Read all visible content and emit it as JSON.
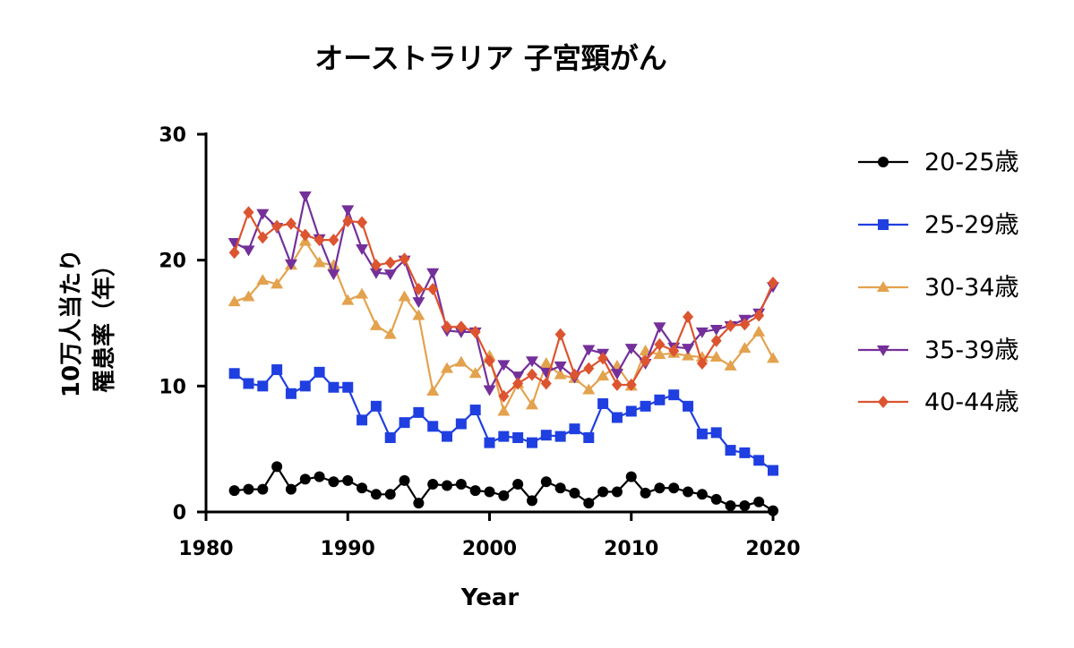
{
  "chart_data": {
    "type": "line",
    "title": "オーストラリア 子宮頸がん",
    "xlabel": "Year",
    "ylabel_lines": [
      "10万人当たり",
      "罹患率（年）"
    ],
    "xlim": [
      1980,
      2020
    ],
    "ylim": [
      0,
      30
    ],
    "xticks": [
      1980,
      1990,
      2000,
      2010,
      2020
    ],
    "yticks": [
      0,
      10,
      20,
      30
    ],
    "legend_position": "right",
    "x": [
      1982,
      1983,
      1984,
      1985,
      1986,
      1987,
      1988,
      1989,
      1990,
      1991,
      1992,
      1993,
      1994,
      1995,
      1996,
      1997,
      1998,
      1999,
      2000,
      2001,
      2002,
      2003,
      2004,
      2005,
      2006,
      2007,
      2008,
      2009,
      2010,
      2011,
      2012,
      2013,
      2014,
      2015,
      2016,
      2017,
      2018,
      2019,
      2020
    ],
    "series": [
      {
        "name": "20-25歳",
        "color": "#000000",
        "marker": "circle",
        "values": [
          1.7,
          1.8,
          1.8,
          3.6,
          1.8,
          2.6,
          2.8,
          2.4,
          2.5,
          1.9,
          1.4,
          1.4,
          2.5,
          0.7,
          2.2,
          2.1,
          2.2,
          1.7,
          1.6,
          1.3,
          2.2,
          0.9,
          2.4,
          1.9,
          1.5,
          0.7,
          1.6,
          1.6,
          2.8,
          1.5,
          1.9,
          1.9,
          1.6,
          1.4,
          1.0,
          0.5,
          0.5,
          0.8,
          0.1
        ]
      },
      {
        "name": "25-29歳",
        "color": "#1f3fe0",
        "marker": "square",
        "values": [
          11.0,
          10.2,
          10.0,
          11.3,
          9.4,
          10.0,
          11.1,
          9.9,
          9.9,
          7.3,
          8.4,
          5.9,
          7.1,
          7.9,
          6.8,
          6.0,
          7.0,
          8.1,
          5.5,
          6.0,
          5.9,
          5.5,
          6.1,
          6.0,
          6.6,
          5.9,
          8.6,
          7.5,
          8.0,
          8.4,
          8.9,
          9.3,
          8.4,
          6.2,
          6.3,
          4.9,
          4.7,
          4.1,
          3.3
        ]
      },
      {
        "name": "30-34歳",
        "color": "#e3a24e",
        "marker": "triangle-up",
        "values": [
          16.7,
          17.1,
          18.4,
          18.1,
          19.6,
          21.5,
          19.8,
          19.6,
          16.8,
          17.3,
          14.8,
          14.1,
          17.1,
          15.6,
          9.6,
          11.4,
          11.9,
          11.0,
          12.4,
          8.0,
          10.2,
          8.5,
          11.8,
          10.9,
          10.6,
          9.7,
          10.8,
          11.6,
          10.0,
          12.8,
          12.5,
          12.6,
          12.4,
          12.3,
          12.3,
          11.6,
          13.0,
          14.3,
          12.2
        ]
      },
      {
        "name": "35-39歳",
        "color": "#74309a",
        "marker": "triangle-down",
        "values": [
          21.4,
          20.8,
          23.7,
          22.6,
          19.7,
          25.1,
          21.7,
          18.9,
          24.0,
          20.9,
          19.0,
          18.9,
          20.0,
          16.7,
          19.0,
          14.4,
          14.3,
          14.3,
          9.7,
          11.7,
          10.8,
          12.0,
          11.1,
          11.6,
          10.7,
          12.9,
          12.6,
          11.0,
          13.0,
          11.8,
          14.7,
          13.1,
          13.0,
          14.3,
          14.5,
          14.8,
          15.3,
          15.8,
          17.9
        ]
      },
      {
        "name": "40-44歳",
        "color": "#dc5430",
        "marker": "diamond",
        "values": [
          20.6,
          23.8,
          21.8,
          22.7,
          22.9,
          22.0,
          21.6,
          21.6,
          23.1,
          23.0,
          19.6,
          19.8,
          20.1,
          17.7,
          17.7,
          14.7,
          14.7,
          14.3,
          12.0,
          9.2,
          10.2,
          10.9,
          10.2,
          14.1,
          10.9,
          11.4,
          12.2,
          10.1,
          10.1,
          12.0,
          13.3,
          12.8,
          15.5,
          11.8,
          13.6,
          14.8,
          14.9,
          15.6,
          18.2
        ]
      }
    ]
  }
}
